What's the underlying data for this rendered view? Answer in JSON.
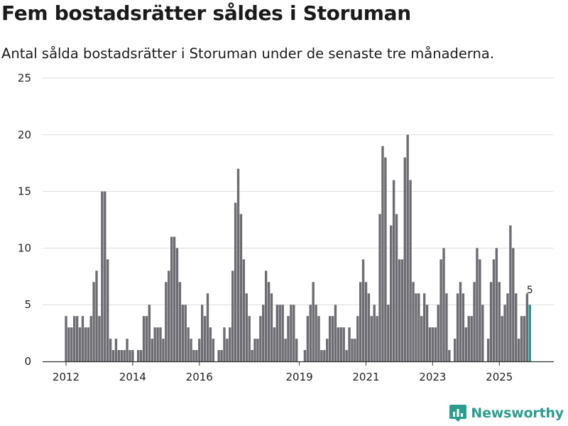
{
  "title": "Fem bostadsrätter såldes i Storuman",
  "subtitle": "Antal sålda bostadsrätter i Storuman under de senaste tre månaderna.",
  "brand": {
    "name": "Newsworthy",
    "color": "#2a9d8f"
  },
  "colors": {
    "bar": "#6d6c72",
    "highlight": "#1f9a90",
    "grid": "#dddddd",
    "axis": "#333333"
  },
  "chart_data": {
    "type": "bar",
    "title": "Fem bostadsrätter såldes i Storuman",
    "xlabel": "",
    "ylabel": "",
    "ylim": [
      0,
      25
    ],
    "yticks": [
      0,
      5,
      10,
      15,
      20,
      25
    ],
    "xticks": [
      {
        "label": "2012",
        "index": 0
      },
      {
        "label": "2014",
        "index": 24
      },
      {
        "label": "2016",
        "index": 48
      },
      {
        "label": "2019",
        "index": 84
      },
      {
        "label": "2021",
        "index": 108
      },
      {
        "label": "2023",
        "index": 132
      },
      {
        "label": "2025",
        "index": 156
      }
    ],
    "x_start": "2012-01",
    "x_end": "2025-12",
    "interval": "month",
    "values": [
      4,
      3,
      3,
      4,
      4,
      3,
      4,
      3,
      3,
      4,
      7,
      8,
      4,
      15,
      15,
      9,
      2,
      1,
      2,
      1,
      1,
      1,
      2,
      1,
      1,
      0,
      1,
      1,
      4,
      4,
      5,
      2,
      3,
      3,
      3,
      2,
      7,
      8,
      11,
      11,
      10,
      7,
      5,
      5,
      3,
      2,
      1,
      1,
      2,
      5,
      4,
      6,
      3,
      2,
      0,
      1,
      1,
      3,
      2,
      3,
      8,
      14,
      17,
      13,
      9,
      6,
      4,
      1,
      2,
      2,
      4,
      5,
      8,
      7,
      6,
      3,
      5,
      5,
      5,
      2,
      4,
      5,
      5,
      2,
      0,
      0,
      1,
      4,
      5,
      7,
      5,
      4,
      1,
      1,
      2,
      4,
      4,
      5,
      3,
      3,
      3,
      1,
      3,
      2,
      2,
      4,
      7,
      9,
      7,
      6,
      4,
      5,
      4,
      13,
      19,
      18,
      5,
      12,
      16,
      13,
      9,
      9,
      18,
      20,
      16,
      7,
      6,
      6,
      4,
      6,
      5,
      3,
      3,
      3,
      5,
      9,
      10,
      6,
      1,
      0,
      2,
      6,
      7,
      6,
      3,
      4,
      4,
      7,
      10,
      9,
      5,
      0,
      2,
      7,
      9,
      10,
      7,
      4,
      5,
      6,
      12,
      10,
      6,
      2,
      4,
      4,
      6,
      5
    ],
    "highlight_index": 167,
    "highlight_label": "5"
  }
}
